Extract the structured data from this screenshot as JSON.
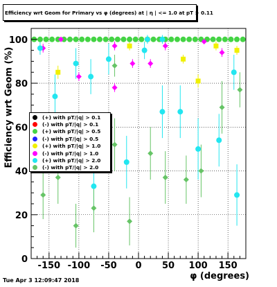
{
  "title": "Efficiency wrt Geom for Primary vs φ (degrees) at | η | <= 1.0 at pT > 0.11",
  "timestamp": "Tue Apr  3 12:09:47 2018",
  "colors": {
    "black": "#000000",
    "red": "#ff0000",
    "green": "#44d444",
    "blue": "#2222ff",
    "yellow": "#f0f000",
    "magenta": "#ff00ff",
    "cyan": "#22e6f0",
    "dgreen": "#66c466"
  },
  "chart_data": {
    "type": "scatter",
    "title": "Efficiency wrt Geom for Primary vs φ (degrees) at | η | <= 1.0 at pT > 0.11",
    "xlabel": "φ (degrees)",
    "ylabel": "Efficiency wrt Geom (%)",
    "xlim": [
      -180,
      180
    ],
    "ylim": [
      0,
      105
    ],
    "xticks": [
      -150,
      -100,
      -50,
      0,
      50,
      100,
      150
    ],
    "yticks": [
      0,
      20,
      40,
      60,
      80,
      100
    ],
    "grid": true,
    "legend_position": "center-left",
    "series": [
      {
        "name": "(+) with pT/|q| > 0.1",
        "color": "black",
        "x": [],
        "y": [],
        "err": []
      },
      {
        "name": "(-) with pT/|q| > 0.1",
        "color": "red",
        "x": [],
        "y": [],
        "err": []
      },
      {
        "name": "(+) with pT/|q| > 0.5",
        "color": "green",
        "x": [
          -175,
          -165,
          -155,
          -145,
          -135,
          -125,
          -115,
          -105,
          -95,
          -85,
          -75,
          -65,
          -55,
          -45,
          -35,
          -25,
          -15,
          -5,
          5,
          15,
          25,
          35,
          45,
          55,
          65,
          75,
          85,
          95,
          105,
          115,
          125,
          135,
          145,
          155,
          165,
          175
        ],
        "y": [
          100,
          100,
          100,
          100,
          100,
          100,
          100,
          100,
          100,
          100,
          100,
          100,
          100,
          100,
          100,
          100,
          100,
          100,
          100,
          100,
          100,
          100,
          100,
          100,
          100,
          100,
          100,
          100,
          100,
          100,
          100,
          100,
          100,
          100,
          100,
          100
        ],
        "err": []
      },
      {
        "name": "(-) with pT/|q| > 0.5",
        "color": "blue",
        "x": [],
        "y": [],
        "err": []
      },
      {
        "name": "(+) with pT/|q| > 1.0",
        "color": "yellow",
        "x": [
          -135,
          -15,
          15,
          75,
          100,
          130,
          165
        ],
        "y": [
          85,
          97,
          100,
          91,
          81,
          97,
          95
        ],
        "err": [
          3,
          2,
          1,
          2,
          3,
          2,
          2
        ]
      },
      {
        "name": "(-) with pT/|q| > 1.0",
        "color": "magenta",
        "x": [
          -160,
          -130,
          -100,
          -40,
          -40,
          -10,
          20,
          45,
          110,
          140
        ],
        "y": [
          96,
          100,
          83,
          97,
          78,
          89,
          89,
          97,
          99,
          94
        ],
        "err": [
          2,
          1,
          2,
          2,
          2,
          2,
          2,
          2,
          1,
          2
        ]
      },
      {
        "name": "(+) with pT/|q| > 2.0",
        "color": "cyan",
        "x": [
          -165,
          -140,
          -105,
          -80,
          -75,
          -50,
          -20,
          10,
          15,
          40,
          40,
          70,
          100,
          135,
          160,
          165
        ],
        "y": [
          96,
          74,
          89,
          83,
          33,
          91,
          44,
          95,
          100,
          100,
          67,
          67,
          50,
          54,
          85,
          29
        ],
        "err": [
          3,
          10,
          7,
          8,
          12,
          7,
          12,
          4,
          2,
          2,
          12,
          12,
          14,
          12,
          8,
          14
        ]
      },
      {
        "name": "(-) with pT/|q| > 2.0",
        "color": "dgreen",
        "x": [
          -160,
          -135,
          -105,
          -75,
          -40,
          -40,
          -15,
          20,
          45,
          80,
          105,
          140,
          170
        ],
        "y": [
          29,
          37,
          15,
          23,
          88,
          52,
          17,
          48,
          37,
          36,
          40,
          69,
          77
        ],
        "err": [
          11,
          12,
          10,
          11,
          5,
          12,
          11,
          12,
          12,
          11,
          12,
          12,
          8
        ]
      }
    ]
  }
}
